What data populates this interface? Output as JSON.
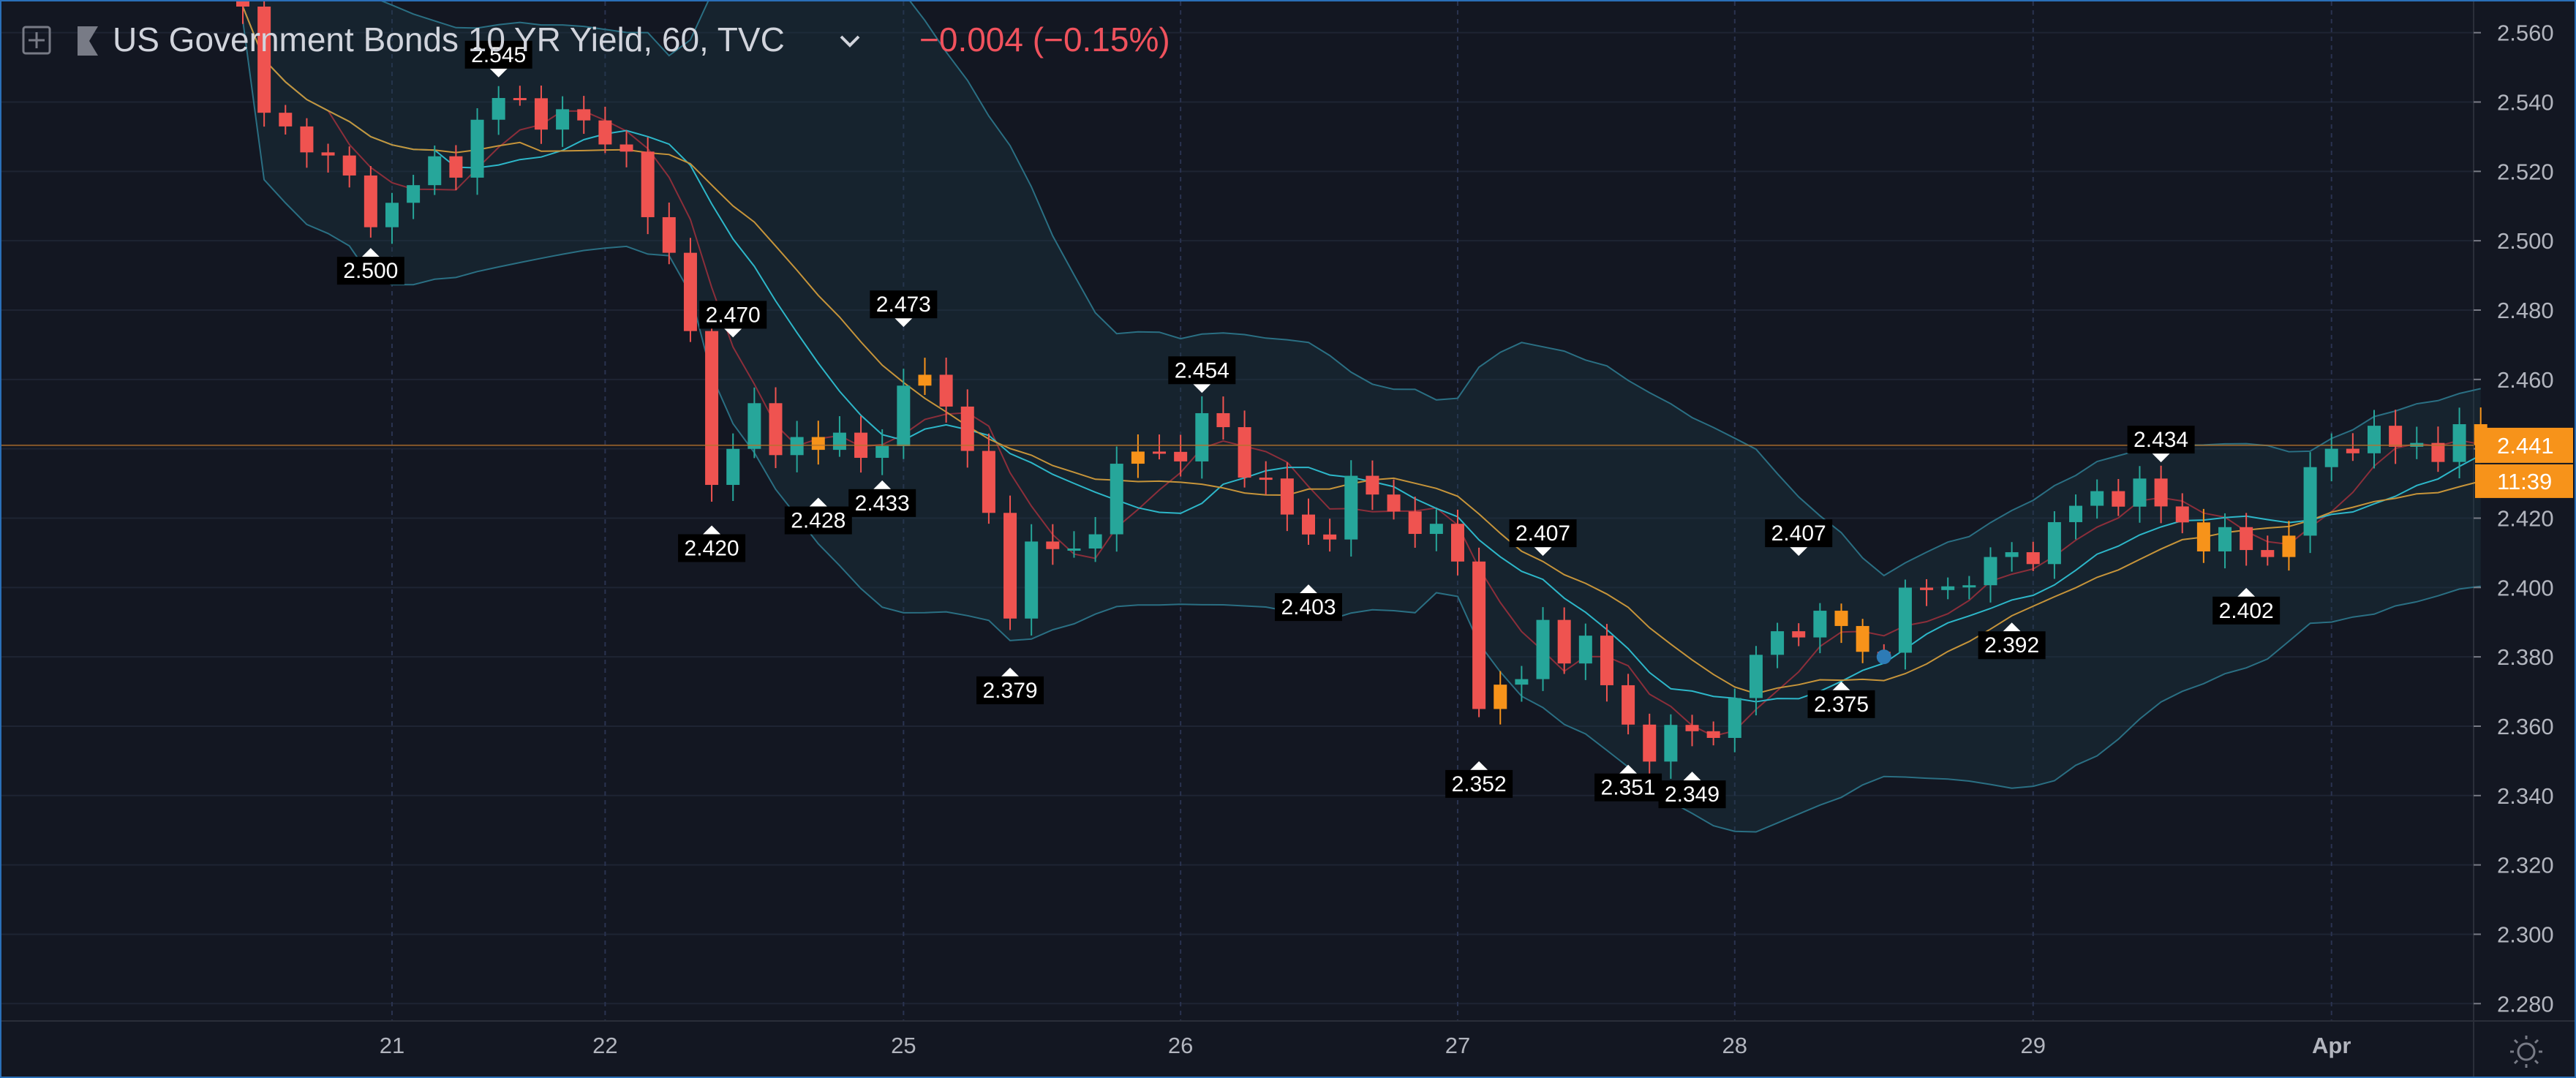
{
  "header": {
    "symbol": "US Government Bonds 10 YR Yield, 60, TVC",
    "change": "−0.004 (−0.15%)",
    "change_color": "#f0525d",
    "text_color": "#d1d4dc"
  },
  "price_badges": {
    "last_price": "2.441",
    "countdown": "11:39",
    "badge_color": "#f7931a"
  },
  "colors": {
    "background": "#131722",
    "grid": "#1e2433",
    "up": "#26a69a",
    "down": "#ef5350",
    "neutral": "#f7931a",
    "band": "#2a6f83",
    "ma_fast": "#8b2e3a",
    "ma_mid": "#2db7c9",
    "ma_slow": "#c6943a"
  },
  "icons": [
    "add-panel-icon",
    "flag-icon",
    "chevron-down-icon",
    "settings-sun-icon"
  ],
  "chart_data": {
    "type": "candlestick",
    "title": "US Government Bonds 10 YR Yield, 60, TVC",
    "y_ticks": [
      "2.560",
      "2.540",
      "2.520",
      "2.500",
      "2.480",
      "2.460",
      "2.440",
      "2.420",
      "2.400",
      "2.380",
      "2.360",
      "2.340",
      "2.320",
      "2.300",
      "2.280"
    ],
    "ylim": [
      2.275,
      2.569
    ],
    "x_ticks": [
      "21",
      "22",
      "25",
      "26",
      "27",
      "28",
      "29",
      "Apr"
    ],
    "x_tick_index": [
      7,
      17,
      31,
      44,
      57,
      70,
      84,
      98
    ],
    "candle_count": 106,
    "last_price": 2.441,
    "annotations": [
      {
        "label": "2.545",
        "index": 12,
        "value": 2.545,
        "pos": "above"
      },
      {
        "label": "2.500",
        "index": 6,
        "value": 2.5,
        "pos": "below"
      },
      {
        "label": "2.470",
        "index": 23,
        "value": 2.47,
        "pos": "above"
      },
      {
        "label": "2.473",
        "index": 31,
        "value": 2.473,
        "pos": "above"
      },
      {
        "label": "2.420",
        "index": 22,
        "value": 2.42,
        "pos": "below"
      },
      {
        "label": "2.428",
        "index": 27,
        "value": 2.428,
        "pos": "below"
      },
      {
        "label": "2.433",
        "index": 30,
        "value": 2.433,
        "pos": "below"
      },
      {
        "label": "2.454",
        "index": 45,
        "value": 2.454,
        "pos": "above"
      },
      {
        "label": "2.379",
        "index": 36,
        "value": 2.379,
        "pos": "below"
      },
      {
        "label": "2.403",
        "index": 50,
        "value": 2.403,
        "pos": "below"
      },
      {
        "label": "2.407",
        "index": 61,
        "value": 2.407,
        "pos": "above"
      },
      {
        "label": "2.352",
        "index": 58,
        "value": 2.352,
        "pos": "below"
      },
      {
        "label": "2.351",
        "index": 65,
        "value": 2.351,
        "pos": "below"
      },
      {
        "label": "2.349",
        "index": 68,
        "value": 2.349,
        "pos": "below"
      },
      {
        "label": "2.407",
        "index": 73,
        "value": 2.407,
        "pos": "above"
      },
      {
        "label": "2.375",
        "index": 75,
        "value": 2.375,
        "pos": "below"
      },
      {
        "label": "2.392",
        "index": 83,
        "value": 2.392,
        "pos": "below"
      },
      {
        "label": "2.434",
        "index": 90,
        "value": 2.434,
        "pos": "above"
      },
      {
        "label": "2.402",
        "index": 94,
        "value": 2.402,
        "pos": "below"
      }
    ],
    "anchors": [
      [
        0,
        2.565
      ],
      [
        1,
        2.535
      ],
      [
        3,
        2.53
      ],
      [
        5,
        2.515
      ],
      [
        6,
        2.508
      ],
      [
        8,
        2.515
      ],
      [
        10,
        2.525
      ],
      [
        12,
        2.54
      ],
      [
        14,
        2.538
      ],
      [
        16,
        2.532
      ],
      [
        18,
        2.528
      ],
      [
        19,
        2.505
      ],
      [
        21,
        2.48
      ],
      [
        22,
        2.428
      ],
      [
        24,
        2.45
      ],
      [
        26,
        2.44
      ],
      [
        27,
        2.438
      ],
      [
        28,
        2.445
      ],
      [
        30,
        2.438
      ],
      [
        31,
        2.455
      ],
      [
        32,
        2.466
      ],
      [
        34,
        2.438
      ],
      [
        36,
        2.398
      ],
      [
        37,
        2.41
      ],
      [
        39,
        2.41
      ],
      [
        41,
        2.432
      ],
      [
        43,
        2.442
      ],
      [
        44,
        2.438
      ],
      [
        45,
        2.448
      ],
      [
        47,
        2.438
      ],
      [
        49,
        2.42
      ],
      [
        50,
        2.413
      ],
      [
        52,
        2.428
      ],
      [
        54,
        2.423
      ],
      [
        56,
        2.415
      ],
      [
        57,
        2.405
      ],
      [
        58,
        2.37
      ],
      [
        60,
        2.372
      ],
      [
        61,
        2.388
      ],
      [
        63,
        2.382
      ],
      [
        65,
        2.36
      ],
      [
        66,
        2.355
      ],
      [
        68,
        2.357
      ],
      [
        69,
        2.36
      ],
      [
        71,
        2.378
      ],
      [
        73,
        2.392
      ],
      [
        75,
        2.388
      ],
      [
        76,
        2.38
      ],
      [
        78,
        2.395
      ],
      [
        80,
        2.402
      ],
      [
        82,
        2.405
      ],
      [
        84,
        2.412
      ],
      [
        86,
        2.422
      ],
      [
        88,
        2.43
      ],
      [
        90,
        2.423
      ],
      [
        92,
        2.415
      ],
      [
        94,
        2.41
      ],
      [
        96,
        2.415
      ],
      [
        97,
        2.432
      ],
      [
        99,
        2.445
      ],
      [
        101,
        2.44
      ],
      [
        103,
        2.442
      ],
      [
        105,
        2.441
      ]
    ],
    "neutral_index": [
      27,
      32,
      42,
      59,
      75,
      76,
      92,
      96,
      105
    ],
    "marker_dot": {
      "index": 77,
      "value": 2.38,
      "color": "#2d7bb6"
    }
  }
}
